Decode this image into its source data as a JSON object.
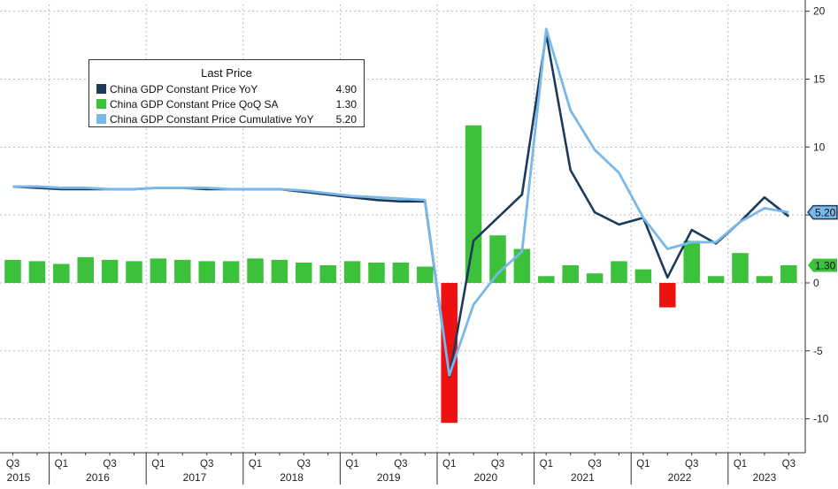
{
  "chart_data": {
    "type": "bar",
    "legend": {
      "title": "Last Price",
      "placement": "top-left",
      "entries": [
        {
          "name": "China GDP Constant Price YoY",
          "value": "4.90",
          "color": "#1c3a5c"
        },
        {
          "name": "China GDP Constant Price QoQ SA",
          "value": "1.30",
          "color": "#3cc13a"
        },
        {
          "name": "China GDP Constant Price Cumulative YoY",
          "value": "5.20",
          "color": "#79b8ea"
        }
      ]
    },
    "y_axis": {
      "position": "right",
      "ylim": [
        -12.5,
        20.5
      ],
      "ticks": [
        20,
        15,
        10,
        5,
        0,
        -5,
        -10
      ],
      "tick_labels": [
        "20",
        "15",
        "10",
        "5",
        "0",
        "-5",
        "-10"
      ]
    },
    "x_axis": {
      "quarters": [
        "2015Q3",
        "2015Q4",
        "2016Q1",
        "2016Q2",
        "2016Q3",
        "2016Q4",
        "2017Q1",
        "2017Q2",
        "2017Q3",
        "2017Q4",
        "2018Q1",
        "2018Q2",
        "2018Q3",
        "2018Q4",
        "2019Q1",
        "2019Q2",
        "2019Q3",
        "2019Q4",
        "2020Q1",
        "2020Q2",
        "2020Q3",
        "2020Q4",
        "2021Q1",
        "2021Q2",
        "2021Q3",
        "2021Q4",
        "2022Q1",
        "2022Q2",
        "2022Q3",
        "2022Q4",
        "2023Q1",
        "2023Q2",
        "2023Q3"
      ],
      "quarter_labels": [
        {
          "index": 0,
          "text": "Q3"
        },
        {
          "index": 2,
          "text": "Q1"
        },
        {
          "index": 4,
          "text": "Q3"
        },
        {
          "index": 6,
          "text": "Q1"
        },
        {
          "index": 8,
          "text": "Q3"
        },
        {
          "index": 10,
          "text": "Q1"
        },
        {
          "index": 12,
          "text": "Q3"
        },
        {
          "index": 14,
          "text": "Q1"
        },
        {
          "index": 16,
          "text": "Q3"
        },
        {
          "index": 18,
          "text": "Q1"
        },
        {
          "index": 20,
          "text": "Q3"
        },
        {
          "index": 22,
          "text": "Q1"
        },
        {
          "index": 24,
          "text": "Q3"
        },
        {
          "index": 26,
          "text": "Q1"
        },
        {
          "index": 28,
          "text": "Q3"
        },
        {
          "index": 30,
          "text": "Q1"
        },
        {
          "index": 32,
          "text": "Q3"
        }
      ],
      "years": [
        {
          "label": "2015",
          "start": 0,
          "count": 2
        },
        {
          "label": "2016",
          "start": 2,
          "count": 4
        },
        {
          "label": "2017",
          "start": 6,
          "count": 4
        },
        {
          "label": "2018",
          "start": 10,
          "count": 4
        },
        {
          "label": "2019",
          "start": 14,
          "count": 4
        },
        {
          "label": "2020",
          "start": 18,
          "count": 4
        },
        {
          "label": "2021",
          "start": 22,
          "count": 4
        },
        {
          "label": "2022",
          "start": 26,
          "count": 4
        },
        {
          "label": "2023",
          "start": 30,
          "count": 3
        }
      ]
    },
    "grid": true,
    "series": [
      {
        "name": "China GDP Constant Price QoQ SA",
        "kind": "bar",
        "color": "#3cc13a",
        "negative_color": "#ee1111",
        "values": [
          1.7,
          1.6,
          1.4,
          1.9,
          1.7,
          1.6,
          1.8,
          1.7,
          1.6,
          1.6,
          1.8,
          1.7,
          1.5,
          1.3,
          1.6,
          1.5,
          1.5,
          1.2,
          -10.3,
          11.6,
          3.5,
          2.5,
          0.5,
          1.3,
          0.7,
          1.6,
          1.0,
          -1.8,
          3.1,
          0.5,
          2.2,
          0.5,
          1.3
        ]
      },
      {
        "name": "China GDP Constant Price YoY",
        "kind": "line",
        "color": "#1c3a5c",
        "values": [
          7.1,
          7.0,
          6.9,
          6.9,
          6.9,
          6.9,
          7.0,
          7.0,
          6.9,
          6.9,
          6.9,
          6.9,
          6.7,
          6.5,
          6.3,
          6.1,
          6.0,
          6.0,
          -6.9,
          3.1,
          4.8,
          6.5,
          18.3,
          8.3,
          5.2,
          4.3,
          4.8,
          0.4,
          3.9,
          2.9,
          4.5,
          6.3,
          4.9
        ]
      },
      {
        "name": "China GDP Constant Price Cumulative YoY",
        "kind": "line",
        "color": "#79b8ea",
        "values": [
          7.1,
          7.1,
          7.0,
          7.0,
          6.9,
          6.9,
          7.0,
          7.0,
          7.0,
          6.9,
          6.9,
          6.9,
          6.8,
          6.6,
          6.4,
          6.3,
          6.2,
          6.1,
          -6.8,
          -1.6,
          0.7,
          2.3,
          18.7,
          12.7,
          9.8,
          8.1,
          4.8,
          2.5,
          3.0,
          3.0,
          4.5,
          5.5,
          5.2
        ]
      }
    ],
    "last_value_tags": [
      {
        "text": "5.20",
        "value": 5.2,
        "color": "#79b8ea"
      },
      {
        "text": "1.30",
        "value": 1.3,
        "color": "#3cc13a"
      }
    ]
  }
}
